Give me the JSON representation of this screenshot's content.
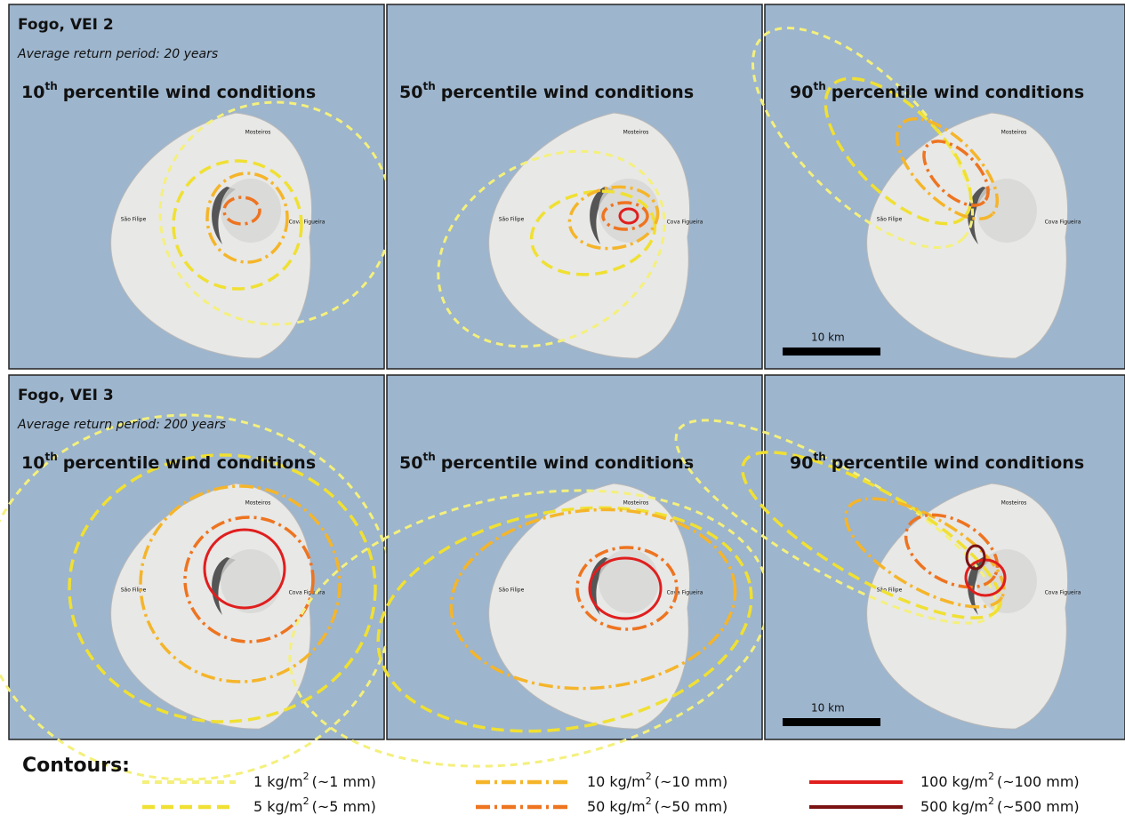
{
  "rows": [
    {
      "title": "Fogo, VEI 2",
      "subtitle": "Average return period: 20 years",
      "panels": [
        {
          "percentile": "10",
          "suffix": "th",
          "heading": "percentile wind conditions"
        },
        {
          "percentile": "50",
          "suffix": "th",
          "heading": "percentile wind conditions"
        },
        {
          "percentile": "90",
          "suffix": "th",
          "heading": "percentile wind conditions"
        }
      ]
    },
    {
      "title": "Fogo, VEI 3",
      "subtitle": "Average return period: 200 years",
      "panels": [
        {
          "percentile": "10",
          "suffix": "th",
          "heading": "percentile wind conditions"
        },
        {
          "percentile": "50",
          "suffix": "th",
          "heading": "percentile wind conditions"
        },
        {
          "percentile": "90",
          "suffix": "th",
          "heading": "percentile wind conditions"
        }
      ]
    }
  ],
  "place_names": [
    "Mosteiros",
    "São Filipe",
    "Cova Figueira"
  ],
  "scale_bar": "10 km",
  "legend": {
    "title": "Contours:",
    "entries": [
      {
        "amount": "1",
        "unit": "kg/m",
        "power": "2",
        "depth": "(~1 mm)",
        "color": "#f4f07c"
      },
      {
        "amount": "5",
        "unit": "kg/m",
        "power": "2",
        "depth": "(~5 mm)",
        "color": "#f0e032"
      },
      {
        "amount": "10",
        "unit": "kg/m",
        "power": "2",
        "depth": "(~10 mm)",
        "color": "#f5b52a"
      },
      {
        "amount": "50",
        "unit": "kg/m",
        "power": "2",
        "depth": "(~50 mm)",
        "color": "#ee7420"
      },
      {
        "amount": "100",
        "unit": "kg/m",
        "power": "2",
        "depth": "(~100 mm)",
        "color": "#e01e1e"
      },
      {
        "amount": "500",
        "unit": "kg/m",
        "power": "2",
        "depth": "(~500 mm)",
        "color": "#7a1212"
      }
    ]
  }
}
